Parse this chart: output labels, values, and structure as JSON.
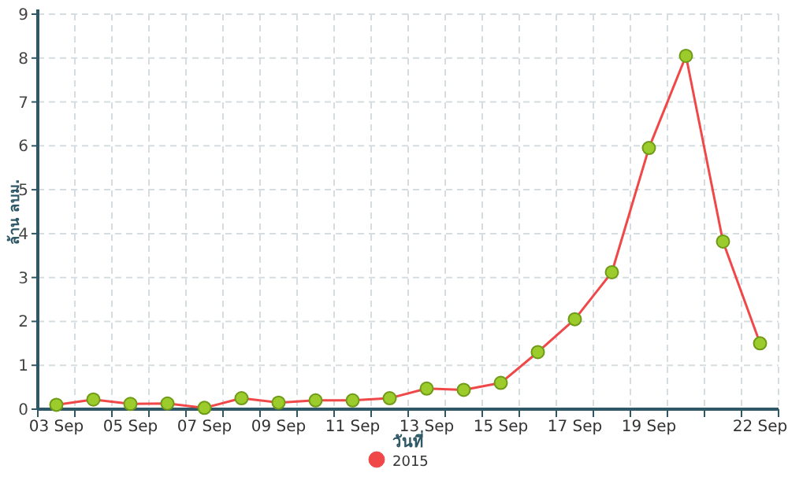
{
  "chart_data": {
    "type": "line",
    "xlabel": "วันที่",
    "ylabel": "ล้าน ลบม.",
    "categories": [
      "03 Sep",
      null,
      "05 Sep",
      null,
      "07 Sep",
      null,
      "09 Sep",
      null,
      "11 Sep",
      null,
      "13 Sep",
      null,
      "15 Sep",
      null,
      "17 Sep",
      null,
      "19 Sep",
      null,
      null,
      "22 Sep"
    ],
    "series": [
      {
        "name": "2015",
        "color": "#f04848",
        "values": [
          0.1,
          0.22,
          0.12,
          0.13,
          0.03,
          0.25,
          0.15,
          0.2,
          0.2,
          0.25,
          0.47,
          0.44,
          0.6,
          1.3,
          2.05,
          3.12,
          5.95,
          8.05,
          3.82,
          1.5
        ]
      }
    ],
    "ylim": [
      0,
      9
    ],
    "yticks": [
      0,
      1,
      2,
      3,
      4,
      5,
      6,
      7,
      8,
      9
    ],
    "grid": true,
    "legend": "bottom",
    "marker": "circle",
    "line_style": "solid"
  }
}
